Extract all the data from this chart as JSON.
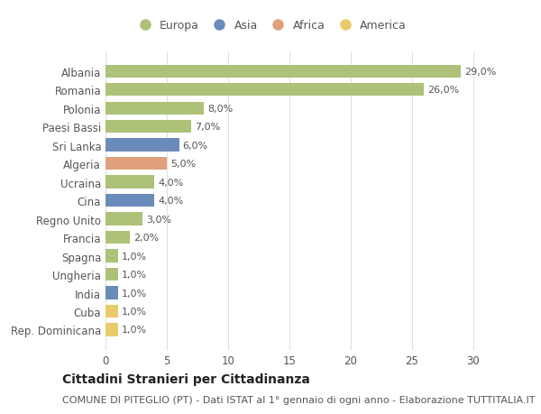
{
  "categories": [
    "Albania",
    "Romania",
    "Polonia",
    "Paesi Bassi",
    "Sri Lanka",
    "Algeria",
    "Ucraina",
    "Cina",
    "Regno Unito",
    "Francia",
    "Spagna",
    "Ungheria",
    "India",
    "Cuba",
    "Rep. Dominicana"
  ],
  "values": [
    29.0,
    26.0,
    8.0,
    7.0,
    6.0,
    5.0,
    4.0,
    4.0,
    3.0,
    2.0,
    1.0,
    1.0,
    1.0,
    1.0,
    1.0
  ],
  "labels": [
    "29,0%",
    "26,0%",
    "8,0%",
    "7,0%",
    "6,0%",
    "5,0%",
    "4,0%",
    "4,0%",
    "3,0%",
    "2,0%",
    "1,0%",
    "1,0%",
    "1,0%",
    "1,0%",
    "1,0%"
  ],
  "continents": [
    "Europa",
    "Europa",
    "Europa",
    "Europa",
    "Asia",
    "Africa",
    "Europa",
    "Asia",
    "Europa",
    "Europa",
    "Europa",
    "Europa",
    "Asia",
    "America",
    "America"
  ],
  "continent_colors": {
    "Europa": "#adc178",
    "Asia": "#6b8cba",
    "Africa": "#e0a07a",
    "America": "#e8cc6a"
  },
  "legend_order": [
    "Europa",
    "Asia",
    "Africa",
    "America"
  ],
  "title": "Cittadini Stranieri per Cittadinanza",
  "subtitle": "COMUNE DI PITEGLIO (PT) - Dati ISTAT al 1° gennaio di ogni anno - Elaborazione TUTTITALIA.IT",
  "xlim": [
    0,
    32
  ],
  "xticks": [
    0,
    5,
    10,
    15,
    20,
    25,
    30
  ],
  "background_color": "#ffffff",
  "grid_color": "#e0e0e0",
  "bar_height": 0.7,
  "title_fontsize": 10,
  "subtitle_fontsize": 8,
  "tick_fontsize": 8.5,
  "label_fontsize": 8,
  "legend_fontsize": 9
}
